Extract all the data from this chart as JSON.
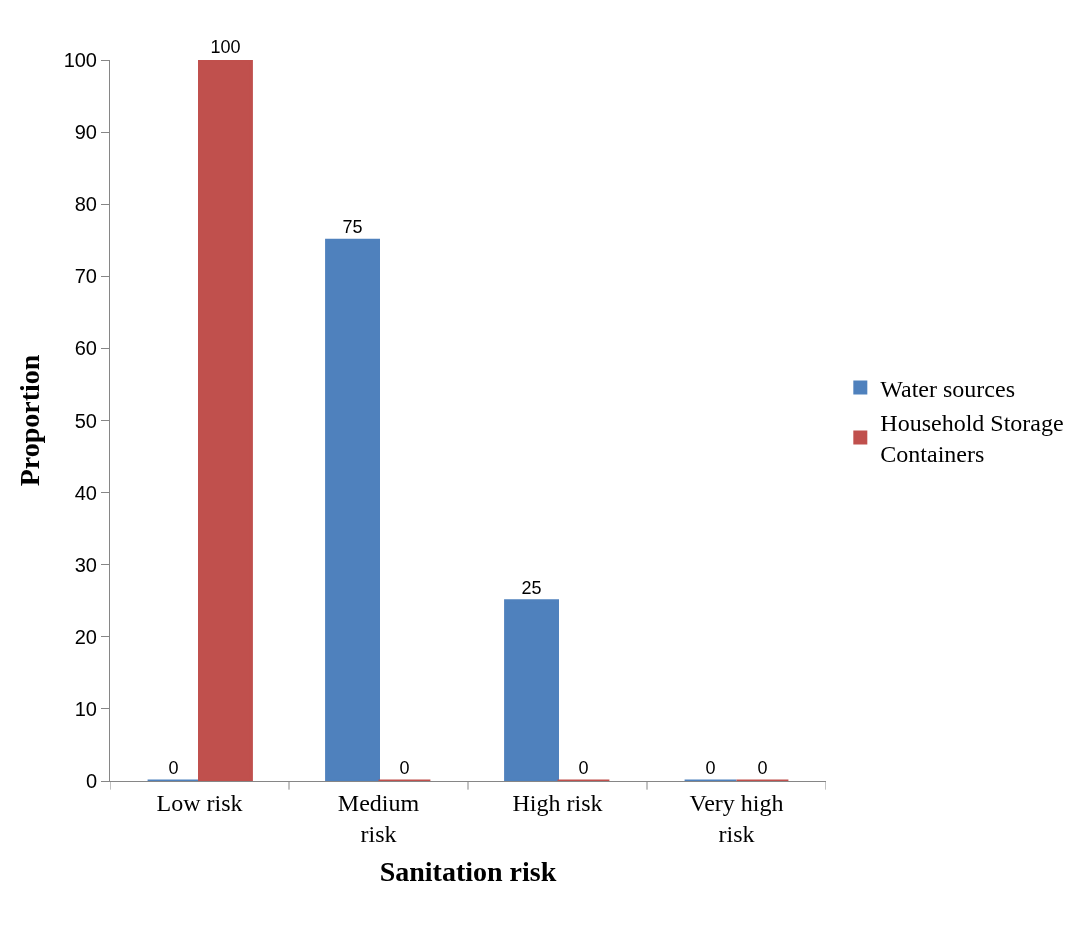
{
  "chart_data": {
    "type": "bar",
    "xlabel": "Sanitation risk",
    "ylabel": "Proportion",
    "categories": [
      "Low risk",
      "Medium risk",
      "High risk",
      "Very high risk"
    ],
    "series": [
      {
        "name": "Water sources",
        "color": "#4f81bd",
        "values": [
          0,
          75,
          25,
          0
        ]
      },
      {
        "name": "Household Storage Containers",
        "color": "#c0504d",
        "values": [
          100,
          0,
          0,
          0
        ]
      }
    ],
    "ylim": [
      0,
      100
    ],
    "yticks": [
      0,
      10,
      20,
      30,
      40,
      50,
      60,
      70,
      80,
      90,
      100
    ],
    "legend": "right",
    "data_labels": true
  }
}
